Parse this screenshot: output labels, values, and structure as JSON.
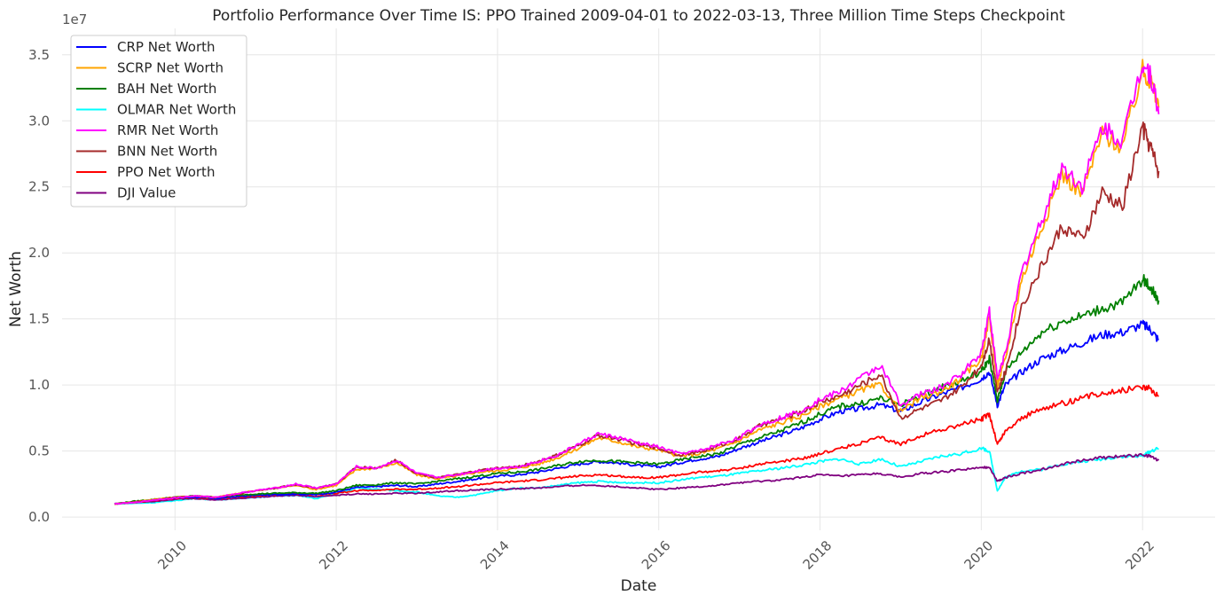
{
  "chart_data": {
    "type": "line",
    "title": "Portfolio Performance Over Time IS: PPO Trained 2009-04-01 to 2022-03-13, Three Million Time Steps Checkpoint",
    "xlabel": "Date",
    "ylabel": "Net Worth",
    "y_offset_label": "1e7",
    "xlim": [
      2008.6,
      2022.9
    ],
    "ylim": [
      -0.1,
      3.7
    ],
    "y_unit": "1e7",
    "grid": true,
    "legend_position": "top-left",
    "x_ticks": [
      2010,
      2012,
      2014,
      2016,
      2018,
      2020,
      2022
    ],
    "x_tick_labels": [
      "2010",
      "2012",
      "2014",
      "2016",
      "2018",
      "2020",
      "2022"
    ],
    "y_ticks": [
      0.0,
      0.5,
      1.0,
      1.5,
      2.0,
      2.5,
      3.0,
      3.5
    ],
    "y_tick_labels": [
      "0.0",
      "0.5",
      "1.0",
      "1.5",
      "2.0",
      "2.5",
      "3.0",
      "3.5"
    ],
    "x": [
      2009.25,
      2009.5,
      2009.75,
      2010.0,
      2010.25,
      2010.5,
      2010.75,
      2011.0,
      2011.25,
      2011.5,
      2011.75,
      2012.0,
      2012.25,
      2012.5,
      2012.75,
      2013.0,
      2013.25,
      2013.5,
      2013.75,
      2014.0,
      2014.25,
      2014.5,
      2014.75,
      2015.0,
      2015.25,
      2015.5,
      2015.75,
      2016.0,
      2016.25,
      2016.5,
      2016.75,
      2017.0,
      2017.25,
      2017.5,
      2017.75,
      2018.0,
      2018.25,
      2018.5,
      2018.75,
      2019.0,
      2019.25,
      2019.5,
      2019.75,
      2020.0,
      2020.1,
      2020.2,
      2020.3,
      2020.5,
      2020.75,
      2021.0,
      2021.25,
      2021.5,
      2021.75,
      2022.0,
      2022.1,
      2022.2
    ],
    "series": [
      {
        "name": "CRP Net Worth",
        "color": "#0000ff",
        "values": [
          0.1,
          0.115,
          0.13,
          0.145,
          0.15,
          0.14,
          0.155,
          0.165,
          0.17,
          0.175,
          0.17,
          0.19,
          0.225,
          0.23,
          0.24,
          0.23,
          0.25,
          0.27,
          0.29,
          0.31,
          0.32,
          0.34,
          0.37,
          0.4,
          0.42,
          0.41,
          0.39,
          0.38,
          0.41,
          0.44,
          0.46,
          0.52,
          0.57,
          0.62,
          0.67,
          0.74,
          0.8,
          0.82,
          0.85,
          0.8,
          0.87,
          0.93,
          0.98,
          1.05,
          1.1,
          0.85,
          1.0,
          1.1,
          1.2,
          1.26,
          1.32,
          1.38,
          1.4,
          1.46,
          1.42,
          1.34
        ]
      },
      {
        "name": "SCRP Net Worth",
        "color": "#ffa500",
        "values": [
          0.1,
          0.115,
          0.135,
          0.15,
          0.16,
          0.15,
          0.175,
          0.2,
          0.22,
          0.24,
          0.21,
          0.24,
          0.36,
          0.37,
          0.41,
          0.32,
          0.29,
          0.31,
          0.34,
          0.35,
          0.37,
          0.4,
          0.45,
          0.52,
          0.6,
          0.57,
          0.53,
          0.51,
          0.46,
          0.48,
          0.52,
          0.58,
          0.66,
          0.71,
          0.76,
          0.84,
          0.9,
          0.96,
          1.0,
          0.8,
          0.9,
          0.95,
          1.05,
          1.2,
          1.52,
          1.0,
          1.2,
          1.8,
          2.2,
          2.6,
          2.45,
          2.9,
          2.8,
          3.38,
          3.3,
          3.1
        ]
      },
      {
        "name": "BAH Net Worth",
        "color": "#008000",
        "values": [
          0.1,
          0.12,
          0.135,
          0.15,
          0.16,
          0.15,
          0.165,
          0.175,
          0.18,
          0.185,
          0.18,
          0.2,
          0.24,
          0.245,
          0.26,
          0.25,
          0.27,
          0.29,
          0.31,
          0.33,
          0.34,
          0.36,
          0.39,
          0.42,
          0.43,
          0.42,
          0.41,
          0.4,
          0.43,
          0.46,
          0.48,
          0.55,
          0.6,
          0.65,
          0.71,
          0.78,
          0.84,
          0.86,
          0.9,
          0.85,
          0.92,
          0.98,
          1.03,
          1.1,
          1.2,
          0.88,
          1.1,
          1.25,
          1.4,
          1.48,
          1.52,
          1.58,
          1.62,
          1.8,
          1.74,
          1.64
        ]
      },
      {
        "name": "OLMAR Net Worth",
        "color": "#00ffff",
        "values": [
          0.1,
          0.105,
          0.11,
          0.125,
          0.14,
          0.13,
          0.14,
          0.15,
          0.16,
          0.165,
          0.14,
          0.18,
          0.22,
          0.21,
          0.2,
          0.19,
          0.16,
          0.15,
          0.17,
          0.2,
          0.22,
          0.22,
          0.24,
          0.26,
          0.27,
          0.26,
          0.26,
          0.26,
          0.28,
          0.3,
          0.31,
          0.33,
          0.35,
          0.37,
          0.39,
          0.42,
          0.44,
          0.4,
          0.44,
          0.38,
          0.42,
          0.46,
          0.48,
          0.52,
          0.5,
          0.2,
          0.3,
          0.35,
          0.36,
          0.4,
          0.42,
          0.44,
          0.46,
          0.46,
          0.5,
          0.52
        ]
      },
      {
        "name": "RMR Net Worth",
        "color": "#ff00ff",
        "values": [
          0.1,
          0.11,
          0.13,
          0.145,
          0.16,
          0.15,
          0.175,
          0.2,
          0.22,
          0.25,
          0.22,
          0.25,
          0.38,
          0.37,
          0.43,
          0.33,
          0.3,
          0.32,
          0.35,
          0.37,
          0.38,
          0.42,
          0.47,
          0.55,
          0.63,
          0.6,
          0.56,
          0.53,
          0.48,
          0.5,
          0.55,
          0.6,
          0.7,
          0.75,
          0.8,
          0.89,
          0.95,
          1.05,
          1.15,
          0.85,
          0.93,
          0.98,
          1.08,
          1.25,
          1.57,
          1.05,
          1.25,
          1.85,
          2.25,
          2.65,
          2.5,
          2.95,
          2.85,
          3.45,
          3.35,
          3.05
        ]
      },
      {
        "name": "BNN Net Worth",
        "color": "#a52a2a",
        "values": [
          0.1,
          0.115,
          0.13,
          0.15,
          0.16,
          0.15,
          0.17,
          0.2,
          0.22,
          0.245,
          0.22,
          0.25,
          0.38,
          0.37,
          0.43,
          0.33,
          0.3,
          0.32,
          0.35,
          0.37,
          0.38,
          0.42,
          0.47,
          0.54,
          0.62,
          0.59,
          0.55,
          0.52,
          0.47,
          0.49,
          0.54,
          0.6,
          0.69,
          0.74,
          0.79,
          0.87,
          0.92,
          1.0,
          1.08,
          0.75,
          0.82,
          0.88,
          0.98,
          1.15,
          1.35,
          0.95,
          1.1,
          1.6,
          1.9,
          2.2,
          2.1,
          2.45,
          2.35,
          2.95,
          2.8,
          2.62
        ]
      },
      {
        "name": "PPO Net Worth",
        "color": "#ff0000",
        "values": [
          0.1,
          0.11,
          0.125,
          0.14,
          0.145,
          0.14,
          0.15,
          0.16,
          0.17,
          0.175,
          0.17,
          0.18,
          0.2,
          0.205,
          0.21,
          0.21,
          0.22,
          0.23,
          0.245,
          0.26,
          0.27,
          0.28,
          0.295,
          0.31,
          0.32,
          0.31,
          0.3,
          0.3,
          0.32,
          0.34,
          0.35,
          0.37,
          0.4,
          0.42,
          0.44,
          0.48,
          0.52,
          0.56,
          0.6,
          0.55,
          0.62,
          0.66,
          0.7,
          0.74,
          0.78,
          0.55,
          0.65,
          0.75,
          0.82,
          0.86,
          0.9,
          0.94,
          0.96,
          0.99,
          0.97,
          0.92
        ]
      },
      {
        "name": "DJI Value",
        "color": "#800080",
        "values": [
          0.1,
          0.11,
          0.12,
          0.135,
          0.14,
          0.13,
          0.14,
          0.15,
          0.16,
          0.165,
          0.155,
          0.165,
          0.175,
          0.175,
          0.18,
          0.18,
          0.19,
          0.2,
          0.205,
          0.21,
          0.215,
          0.22,
          0.23,
          0.24,
          0.24,
          0.23,
          0.22,
          0.21,
          0.22,
          0.23,
          0.24,
          0.26,
          0.27,
          0.28,
          0.3,
          0.32,
          0.31,
          0.32,
          0.33,
          0.3,
          0.33,
          0.34,
          0.36,
          0.37,
          0.38,
          0.27,
          0.3,
          0.33,
          0.36,
          0.4,
          0.43,
          0.45,
          0.46,
          0.47,
          0.46,
          0.43
        ]
      }
    ]
  }
}
